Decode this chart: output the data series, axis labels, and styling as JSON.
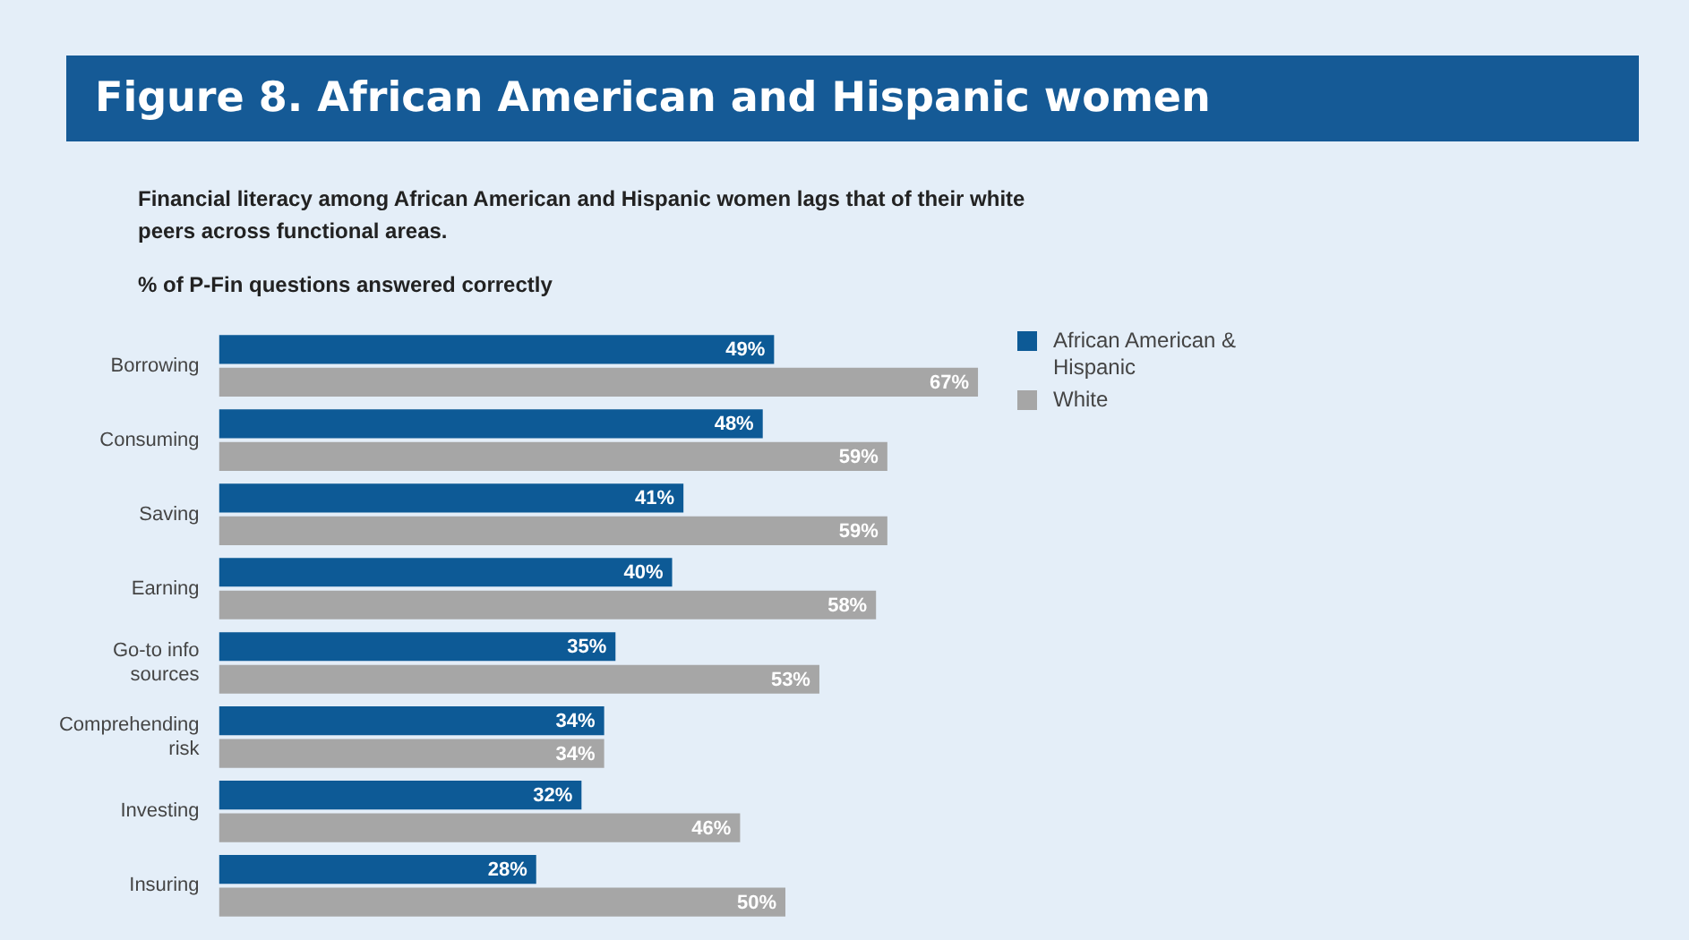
{
  "chart_data": {
    "type": "bar",
    "orientation": "horizontal",
    "title": "Figure 8. African American and Hispanic women",
    "subtitle": "Financial literacy among African American and Hispanic women lags that of their white peers across functional areas.",
    "xlabel": "% of P-Fin questions answered correctly",
    "categories": [
      "Borrowing",
      "Consuming",
      "Saving",
      "Earning",
      "Go-to info sources",
      "Comprehending risk",
      "Investing",
      "Insuring"
    ],
    "series": [
      {
        "name": "African American & Hispanic",
        "color": "#0d5a96",
        "values": [
          49,
          48,
          41,
          40,
          35,
          34,
          32,
          28
        ],
        "value_labels": [
          "49%",
          "48%",
          "41%",
          "40%",
          "35%",
          "34%",
          "32%",
          "28%"
        ]
      },
      {
        "name": "White",
        "color": "#a6a6a6",
        "values": [
          67,
          59,
          59,
          58,
          53,
          34,
          46,
          50
        ],
        "value_labels": [
          "67%",
          "59%",
          "59%",
          "58%",
          "53%",
          "34%",
          "46%",
          "50%"
        ]
      }
    ],
    "legend": "top right"
  }
}
